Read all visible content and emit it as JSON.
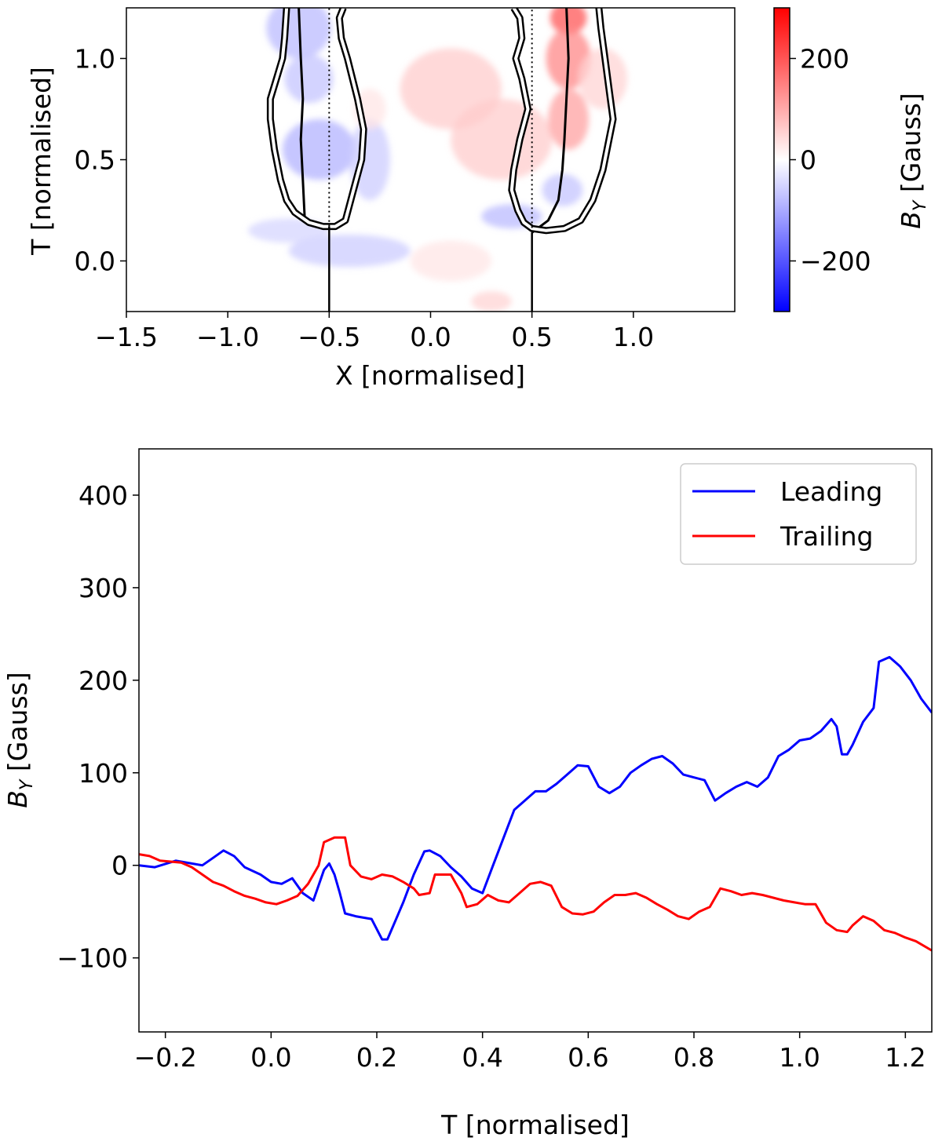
{
  "chart_data": [
    {
      "type": "heatmap",
      "xlabel": "X [normalised]",
      "ylabel": "T [normalised]",
      "xlim": [
        -1.5,
        1.5
      ],
      "ylim": [
        -0.25,
        1.25
      ],
      "x_ticks": [
        -1.5,
        -1.0,
        -0.5,
        0.0,
        0.5,
        1.0
      ],
      "x_tick_labels": [
        "−1.5",
        "−1.0",
        "−0.5",
        "0.0",
        "0.5",
        "1.0"
      ],
      "y_ticks": [
        0.0,
        0.5,
        1.0
      ],
      "y_tick_labels": [
        "0.0",
        "0.5",
        "1.0"
      ],
      "colorbar": {
        "label_main": "B",
        "label_sub": "Y",
        "label_rest": " [Gauss]",
        "range": [
          -300,
          300
        ],
        "ticks": [
          -200,
          0,
          200
        ],
        "tick_labels": [
          "−200",
          "0",
          "200"
        ],
        "low_color": "#0000ff",
        "mid_color": "#ffffff",
        "high_color": "#ff0000"
      },
      "vertical_lines": [
        {
          "x": -0.5,
          "from_t": -0.25,
          "to_t": 0.17,
          "style": "solid"
        },
        {
          "x": -0.5,
          "from_t": 0.17,
          "to_t": 1.25,
          "style": "dotted"
        },
        {
          "x": 0.5,
          "from_t": -0.25,
          "to_t": 0.14,
          "style": "solid"
        },
        {
          "x": 0.5,
          "from_t": 0.14,
          "to_t": 1.25,
          "style": "dotted"
        }
      ],
      "paths": [
        {
          "name": "left-centre",
          "points": [
            [
              -0.5,
              0.17
            ],
            [
              -0.57,
              0.19
            ],
            [
              -0.62,
              0.2
            ],
            [
              -0.63,
              0.4
            ],
            [
              -0.64,
              0.6
            ],
            [
              -0.63,
              0.8
            ],
            [
              -0.64,
              1.0
            ],
            [
              -0.65,
              1.25
            ]
          ]
        },
        {
          "name": "right-centre",
          "points": [
            [
              0.5,
              0.14
            ],
            [
              0.58,
              0.2
            ],
            [
              0.63,
              0.3
            ],
            [
              0.65,
              0.45
            ],
            [
              0.66,
              0.6
            ],
            [
              0.67,
              0.8
            ],
            [
              0.68,
              1.0
            ],
            [
              0.67,
              1.25
            ]
          ]
        },
        {
          "name": "left-contour",
          "points": [
            [
              -0.71,
              1.25
            ],
            [
              -0.72,
              1.1
            ],
            [
              -0.73,
              1.0
            ],
            [
              -0.76,
              0.9
            ],
            [
              -0.79,
              0.8
            ],
            [
              -0.79,
              0.7
            ],
            [
              -0.77,
              0.55
            ],
            [
              -0.74,
              0.4
            ],
            [
              -0.71,
              0.3
            ],
            [
              -0.67,
              0.24
            ],
            [
              -0.6,
              0.19
            ],
            [
              -0.53,
              0.17
            ],
            [
              -0.47,
              0.17
            ],
            [
              -0.42,
              0.2
            ],
            [
              -0.38,
              0.35
            ],
            [
              -0.34,
              0.5
            ],
            [
              -0.33,
              0.65
            ],
            [
              -0.36,
              0.8
            ],
            [
              -0.41,
              1.0
            ],
            [
              -0.44,
              1.1
            ],
            [
              -0.45,
              1.2
            ],
            [
              -0.43,
              1.25
            ]
          ]
        },
        {
          "name": "right-contour",
          "points": [
            [
              0.41,
              1.25
            ],
            [
              0.44,
              1.2
            ],
            [
              0.45,
              1.1
            ],
            [
              0.42,
              1.0
            ],
            [
              0.45,
              0.9
            ],
            [
              0.48,
              0.75
            ],
            [
              0.44,
              0.6
            ],
            [
              0.41,
              0.45
            ],
            [
              0.4,
              0.35
            ],
            [
              0.43,
              0.25
            ],
            [
              0.46,
              0.19
            ],
            [
              0.5,
              0.16
            ],
            [
              0.57,
              0.15
            ],
            [
              0.66,
              0.16
            ],
            [
              0.74,
              0.2
            ],
            [
              0.8,
              0.3
            ],
            [
              0.85,
              0.45
            ],
            [
              0.88,
              0.6
            ],
            [
              0.9,
              0.7
            ],
            [
              0.88,
              0.85
            ],
            [
              0.86,
              1.0
            ],
            [
              0.84,
              1.15
            ],
            [
              0.83,
              1.25
            ]
          ]
        }
      ],
      "features": [
        {
          "x": -0.65,
          "t": 1.15,
          "value": -80,
          "sx": 0.16,
          "st": 0.15
        },
        {
          "x": -0.6,
          "t": 0.9,
          "value": -70,
          "sx": 0.12,
          "st": 0.12
        },
        {
          "x": -0.55,
          "t": 0.55,
          "value": -90,
          "sx": 0.18,
          "st": 0.15
        },
        {
          "x": -0.3,
          "t": 0.5,
          "value": -60,
          "sx": 0.1,
          "st": 0.2
        },
        {
          "x": -0.4,
          "t": 0.05,
          "value": -60,
          "sx": 0.3,
          "st": 0.08
        },
        {
          "x": -0.7,
          "t": 0.15,
          "value": -50,
          "sx": 0.2,
          "st": 0.06
        },
        {
          "x": -0.3,
          "t": 0.75,
          "value": 30,
          "sx": 0.08,
          "st": 0.1
        },
        {
          "x": 0.4,
          "t": 0.22,
          "value": -80,
          "sx": 0.15,
          "st": 0.06
        },
        {
          "x": 0.65,
          "t": 0.35,
          "value": -70,
          "sx": 0.1,
          "st": 0.08
        },
        {
          "x": 0.1,
          "t": 0.85,
          "value": 60,
          "sx": 0.25,
          "st": 0.2
        },
        {
          "x": 0.35,
          "t": 0.6,
          "value": 60,
          "sx": 0.25,
          "st": 0.2
        },
        {
          "x": 0.68,
          "t": 1.2,
          "value": 200,
          "sx": 0.09,
          "st": 0.08
        },
        {
          "x": 0.68,
          "t": 1.0,
          "value": 140,
          "sx": 0.11,
          "st": 0.15
        },
        {
          "x": 0.68,
          "t": 0.7,
          "value": 110,
          "sx": 0.1,
          "st": 0.15
        },
        {
          "x": 0.85,
          "t": 0.9,
          "value": 50,
          "sx": 0.12,
          "st": 0.15
        },
        {
          "x": 0.3,
          "t": -0.2,
          "value": 50,
          "sx": 0.1,
          "st": 0.05
        },
        {
          "x": 0.1,
          "t": 0.0,
          "value": 30,
          "sx": 0.2,
          "st": 0.1
        }
      ]
    },
    {
      "type": "line",
      "xlabel": "T [normalised]",
      "ylabel_main": "B",
      "ylabel_sub": "Y",
      "ylabel_rest": " [Gauss]",
      "xlim": [
        -0.25,
        1.25
      ],
      "ylim": [
        -180,
        450
      ],
      "x_ticks": [
        -0.2,
        0.0,
        0.2,
        0.4,
        0.6,
        0.8,
        1.0,
        1.2
      ],
      "x_tick_labels": [
        "−0.2",
        "0.0",
        "0.2",
        "0.4",
        "0.6",
        "0.8",
        "1.0",
        "1.2"
      ],
      "y_ticks": [
        -100,
        0,
        100,
        200,
        300,
        400
      ],
      "y_tick_labels": [
        "−100",
        "0",
        "100",
        "200",
        "300",
        "400"
      ],
      "legend": "top-right",
      "series": [
        {
          "name": "Leading",
          "color": "#0000ff",
          "points": [
            [
              -0.25,
              0
            ],
            [
              -0.22,
              -2
            ],
            [
              -0.18,
              5
            ],
            [
              -0.15,
              2
            ],
            [
              -0.13,
              0
            ],
            [
              -0.11,
              8
            ],
            [
              -0.09,
              16
            ],
            [
              -0.07,
              10
            ],
            [
              -0.05,
              -2
            ],
            [
              -0.02,
              -10
            ],
            [
              0.0,
              -18
            ],
            [
              0.02,
              -20
            ],
            [
              0.04,
              -14
            ],
            [
              0.06,
              -30
            ],
            [
              0.08,
              -38
            ],
            [
              0.1,
              -5
            ],
            [
              0.11,
              2
            ],
            [
              0.12,
              -10
            ],
            [
              0.13,
              -30
            ],
            [
              0.14,
              -52
            ],
            [
              0.16,
              -55
            ],
            [
              0.19,
              -58
            ],
            [
              0.21,
              -80
            ],
            [
              0.22,
              -80
            ],
            [
              0.25,
              -40
            ],
            [
              0.27,
              -10
            ],
            [
              0.29,
              15
            ],
            [
              0.3,
              16
            ],
            [
              0.32,
              10
            ],
            [
              0.34,
              -2
            ],
            [
              0.36,
              -12
            ],
            [
              0.38,
              -25
            ],
            [
              0.4,
              -30
            ],
            [
              0.42,
              0
            ],
            [
              0.44,
              30
            ],
            [
              0.46,
              60
            ],
            [
              0.48,
              70
            ],
            [
              0.5,
              80
            ],
            [
              0.52,
              80
            ],
            [
              0.54,
              88
            ],
            [
              0.56,
              98
            ],
            [
              0.58,
              108
            ],
            [
              0.6,
              107
            ],
            [
              0.62,
              85
            ],
            [
              0.64,
              78
            ],
            [
              0.66,
              85
            ],
            [
              0.68,
              100
            ],
            [
              0.7,
              108
            ],
            [
              0.72,
              115
            ],
            [
              0.74,
              118
            ],
            [
              0.76,
              110
            ],
            [
              0.78,
              98
            ],
            [
              0.8,
              95
            ],
            [
              0.82,
              92
            ],
            [
              0.84,
              70
            ],
            [
              0.86,
              78
            ],
            [
              0.88,
              85
            ],
            [
              0.9,
              90
            ],
            [
              0.92,
              85
            ],
            [
              0.94,
              95
            ],
            [
              0.96,
              118
            ],
            [
              0.98,
              125
            ],
            [
              1.0,
              135
            ],
            [
              1.02,
              137
            ],
            [
              1.04,
              145
            ],
            [
              1.06,
              158
            ],
            [
              1.07,
              150
            ],
            [
              1.08,
              120
            ],
            [
              1.09,
              120
            ],
            [
              1.1,
              130
            ],
            [
              1.12,
              155
            ],
            [
              1.14,
              170
            ],
            [
              1.15,
              220
            ],
            [
              1.17,
              225
            ],
            [
              1.19,
              215
            ],
            [
              1.21,
              200
            ],
            [
              1.23,
              180
            ],
            [
              1.25,
              165
            ]
          ]
        },
        {
          "name": "Trailing",
          "color": "#ff0000",
          "points": [
            [
              -0.25,
              12
            ],
            [
              -0.23,
              10
            ],
            [
              -0.21,
              5
            ],
            [
              -0.19,
              4
            ],
            [
              -0.17,
              3
            ],
            [
              -0.15,
              -2
            ],
            [
              -0.13,
              -10
            ],
            [
              -0.11,
              -18
            ],
            [
              -0.09,
              -22
            ],
            [
              -0.07,
              -28
            ],
            [
              -0.05,
              -33
            ],
            [
              -0.03,
              -36
            ],
            [
              -0.01,
              -40
            ],
            [
              0.01,
              -42
            ],
            [
              0.03,
              -38
            ],
            [
              0.05,
              -33
            ],
            [
              0.07,
              -20
            ],
            [
              0.09,
              0
            ],
            [
              0.1,
              25
            ],
            [
              0.12,
              30
            ],
            [
              0.14,
              30
            ],
            [
              0.15,
              0
            ],
            [
              0.17,
              -12
            ],
            [
              0.19,
              -15
            ],
            [
              0.21,
              -10
            ],
            [
              0.23,
              -12
            ],
            [
              0.25,
              -18
            ],
            [
              0.27,
              -25
            ],
            [
              0.28,
              -32
            ],
            [
              0.3,
              -30
            ],
            [
              0.31,
              -10
            ],
            [
              0.34,
              -10
            ],
            [
              0.36,
              -30
            ],
            [
              0.37,
              -45
            ],
            [
              0.39,
              -42
            ],
            [
              0.41,
              -32
            ],
            [
              0.43,
              -38
            ],
            [
              0.45,
              -40
            ],
            [
              0.47,
              -30
            ],
            [
              0.49,
              -20
            ],
            [
              0.51,
              -18
            ],
            [
              0.53,
              -22
            ],
            [
              0.55,
              -45
            ],
            [
              0.57,
              -52
            ],
            [
              0.59,
              -53
            ],
            [
              0.61,
              -50
            ],
            [
              0.63,
              -40
            ],
            [
              0.65,
              -32
            ],
            [
              0.67,
              -32
            ],
            [
              0.69,
              -30
            ],
            [
              0.71,
              -35
            ],
            [
              0.73,
              -42
            ],
            [
              0.75,
              -48
            ],
            [
              0.77,
              -55
            ],
            [
              0.79,
              -58
            ],
            [
              0.81,
              -50
            ],
            [
              0.83,
              -45
            ],
            [
              0.85,
              -25
            ],
            [
              0.87,
              -28
            ],
            [
              0.89,
              -32
            ],
            [
              0.91,
              -30
            ],
            [
              0.93,
              -32
            ],
            [
              0.95,
              -35
            ],
            [
              0.97,
              -38
            ],
            [
              0.99,
              -40
            ],
            [
              1.01,
              -42
            ],
            [
              1.03,
              -42
            ],
            [
              1.05,
              -62
            ],
            [
              1.07,
              -70
            ],
            [
              1.09,
              -72
            ],
            [
              1.1,
              -65
            ],
            [
              1.12,
              -55
            ],
            [
              1.14,
              -60
            ],
            [
              1.16,
              -70
            ],
            [
              1.18,
              -73
            ],
            [
              1.2,
              -78
            ],
            [
              1.22,
              -82
            ],
            [
              1.25,
              -92
            ]
          ]
        }
      ]
    }
  ]
}
